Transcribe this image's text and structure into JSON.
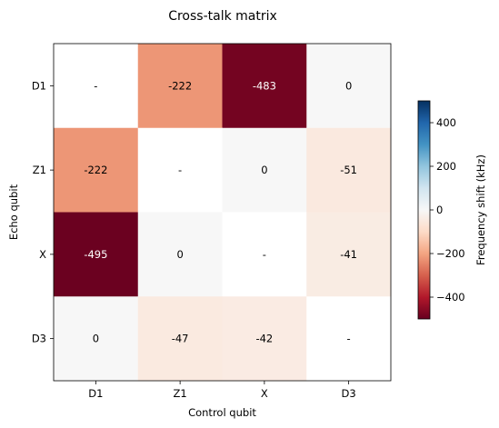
{
  "chart_data": {
    "type": "heatmap",
    "title": "Cross-talk matrix",
    "xlabel": "Control qubit",
    "ylabel": "Echo qubit",
    "x_categories": [
      "D1",
      "Z1",
      "X",
      "D3"
    ],
    "y_categories": [
      "D1",
      "Z1",
      "X",
      "D3"
    ],
    "values": [
      [
        null,
        -222,
        -483,
        0
      ],
      [
        -222,
        null,
        0,
        -51
      ],
      [
        -495,
        0,
        null,
        -41
      ],
      [
        0,
        -47,
        -42,
        null
      ]
    ],
    "cell_labels": [
      [
        "-",
        "-222",
        "-483",
        "0"
      ],
      [
        "-222",
        "-",
        "0",
        "-51"
      ],
      [
        "-495",
        "0",
        "-",
        "-41"
      ],
      [
        "0",
        "-47",
        "-42",
        "-"
      ]
    ],
    "colormap": "RdBu",
    "clim": [
      -500,
      500
    ],
    "colorbar": {
      "label": "Frequency shift (kHz)",
      "ticks": [
        400,
        200,
        0,
        -200,
        -400
      ],
      "tick_labels": [
        "400",
        "200",
        "0",
        "−200",
        "−400"
      ]
    },
    "grid": false
  }
}
